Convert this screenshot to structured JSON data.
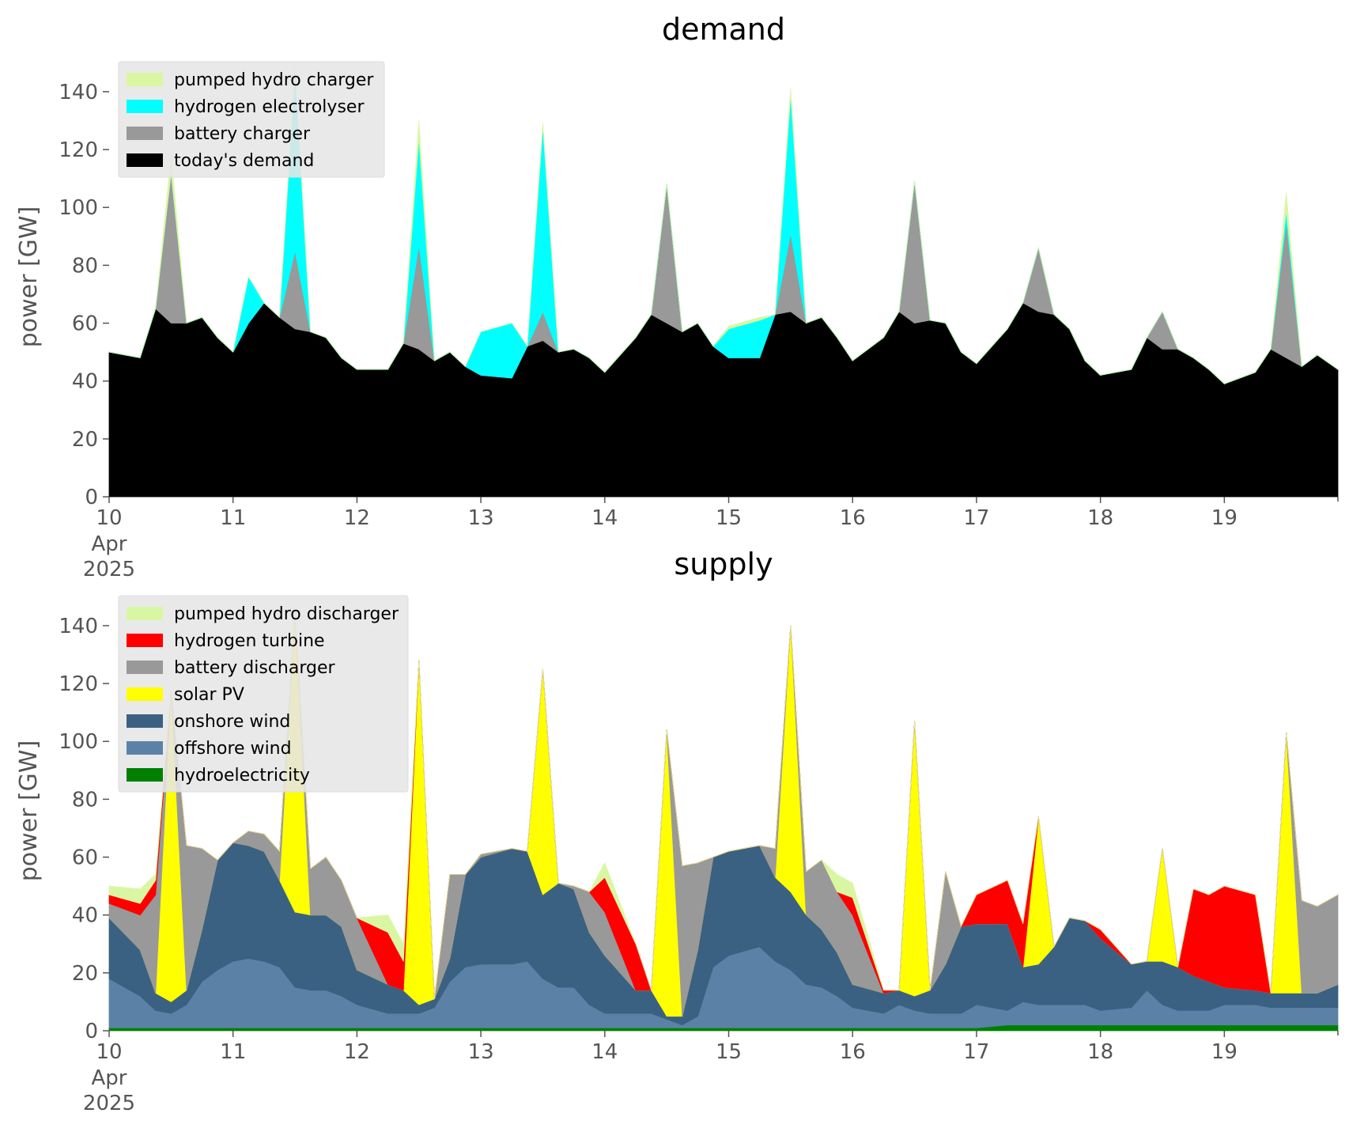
{
  "chart_data": [
    {
      "type": "area",
      "stacked": true,
      "title": "demand",
      "ylabel": "power [GW]",
      "xlabel": "",
      "ylim": [
        0,
        152
      ],
      "yticks": [
        0,
        20,
        40,
        60,
        80,
        100,
        120,
        140
      ],
      "xlim": [
        "2025-04-10 00:00",
        "2025-04-19 22:00"
      ],
      "xtick_labels": [
        "10",
        "11",
        "12",
        "13",
        "14",
        "15",
        "16",
        "17",
        "18",
        "19"
      ],
      "xtick_sublabels": [
        "Apr",
        "2025"
      ],
      "legend_position": "top-left",
      "grid": false,
      "x": [
        "2025-04-10 00:00",
        "2025-04-10 06:00",
        "2025-04-10 09:00",
        "2025-04-10 12:00",
        "2025-04-10 15:00",
        "2025-04-10 18:00",
        "2025-04-10 21:00",
        "2025-04-11 00:00",
        "2025-04-11 03:00",
        "2025-04-11 06:00",
        "2025-04-11 09:00",
        "2025-04-11 12:00",
        "2025-04-11 15:00",
        "2025-04-11 18:00",
        "2025-04-11 21:00",
        "2025-04-12 00:00",
        "2025-04-12 06:00",
        "2025-04-12 09:00",
        "2025-04-12 12:00",
        "2025-04-12 15:00",
        "2025-04-12 18:00",
        "2025-04-12 21:00",
        "2025-04-13 00:00",
        "2025-04-13 06:00",
        "2025-04-13 09:00",
        "2025-04-13 12:00",
        "2025-04-13 15:00",
        "2025-04-13 18:00",
        "2025-04-13 21:00",
        "2025-04-14 00:00",
        "2025-04-14 06:00",
        "2025-04-14 09:00",
        "2025-04-14 12:00",
        "2025-04-14 15:00",
        "2025-04-14 18:00",
        "2025-04-14 21:00",
        "2025-04-15 00:00",
        "2025-04-15 06:00",
        "2025-04-15 09:00",
        "2025-04-15 12:00",
        "2025-04-15 15:00",
        "2025-04-15 18:00",
        "2025-04-15 21:00",
        "2025-04-16 00:00",
        "2025-04-16 06:00",
        "2025-04-16 09:00",
        "2025-04-16 12:00",
        "2025-04-16 15:00",
        "2025-04-16 18:00",
        "2025-04-16 21:00",
        "2025-04-17 00:00",
        "2025-04-17 06:00",
        "2025-04-17 09:00",
        "2025-04-17 12:00",
        "2025-04-17 15:00",
        "2025-04-17 18:00",
        "2025-04-17 21:00",
        "2025-04-18 00:00",
        "2025-04-18 06:00",
        "2025-04-18 09:00",
        "2025-04-18 12:00",
        "2025-04-18 15:00",
        "2025-04-18 18:00",
        "2025-04-18 21:00",
        "2025-04-19 00:00",
        "2025-04-19 06:00",
        "2025-04-19 09:00",
        "2025-04-19 12:00",
        "2025-04-19 15:00",
        "2025-04-19 18:00",
        "2025-04-19 22:00"
      ],
      "series": [
        {
          "name": "today's demand",
          "color": "#000000",
          "values": [
            50,
            48,
            65,
            60,
            60,
            62,
            55,
            50,
            60,
            67,
            62,
            58,
            57,
            55,
            48,
            44,
            44,
            53,
            51,
            47,
            50,
            45,
            42,
            41,
            52,
            54,
            50,
            51,
            48,
            43,
            55,
            63,
            60,
            57,
            60,
            52,
            48,
            48,
            63,
            64,
            60,
            62,
            55,
            47,
            55,
            64,
            60,
            61,
            60,
            50,
            46,
            58,
            67,
            64,
            63,
            58,
            47,
            42,
            44,
            55,
            51,
            51,
            48,
            44,
            39,
            43,
            51,
            48,
            45,
            49,
            44
          ]
        },
        {
          "name": "battery charger",
          "color": "#999999",
          "values": [
            0,
            0,
            0,
            52,
            0,
            0,
            0,
            0,
            0,
            0,
            0,
            27,
            0,
            0,
            0,
            0,
            0,
            0,
            36,
            0,
            0,
            0,
            0,
            0,
            0,
            10,
            0,
            0,
            0,
            0,
            0,
            0,
            48,
            0,
            0,
            0,
            0,
            0,
            0,
            27,
            0,
            0,
            0,
            0,
            0,
            0,
            49,
            0,
            0,
            0,
            0,
            0,
            0,
            22,
            0,
            0,
            0,
            0,
            0,
            0,
            13,
            0,
            0,
            0,
            0,
            0,
            0,
            47,
            0,
            0,
            0
          ]
        },
        {
          "name": "hydrogen electrolyser",
          "color": "#00ffff",
          "values": [
            0,
            0,
            0,
            0,
            0,
            0,
            0,
            0,
            16,
            0,
            0,
            62,
            0,
            0,
            0,
            0,
            0,
            0,
            37,
            0,
            0,
            0,
            15,
            19,
            0,
            64,
            0,
            0,
            0,
            0,
            0,
            0,
            0,
            0,
            0,
            0,
            10,
            13,
            0,
            48,
            0,
            0,
            0,
            0,
            0,
            0,
            0,
            0,
            0,
            0,
            0,
            0,
            0,
            0,
            0,
            0,
            0,
            0,
            0,
            0,
            0,
            0,
            0,
            0,
            0,
            0,
            0,
            4,
            0,
            0,
            0
          ]
        },
        {
          "name": "pumped hydro charger",
          "color": "#d9f7a3",
          "values": [
            0,
            0,
            0,
            6,
            0,
            0,
            0,
            0,
            0,
            0,
            0,
            1,
            0,
            0,
            0,
            0,
            0,
            0,
            6,
            0,
            0,
            0,
            0,
            0,
            0,
            1,
            0,
            0,
            0,
            0,
            0,
            0,
            0,
            0,
            0,
            0,
            1,
            1,
            0,
            2,
            0,
            0,
            0,
            0,
            0,
            0,
            0,
            0,
            0,
            0,
            0,
            0,
            0,
            0,
            0,
            0,
            0,
            0,
            0,
            0,
            0,
            0,
            0,
            0,
            0,
            0,
            0,
            6,
            0,
            0,
            0
          ]
        }
      ]
    },
    {
      "type": "area",
      "stacked": true,
      "title": "supply",
      "ylabel": "power [GW]",
      "xlabel": "",
      "ylim": [
        0,
        152
      ],
      "yticks": [
        0,
        20,
        40,
        60,
        80,
        100,
        120,
        140
      ],
      "xlim": [
        "2025-04-10 00:00",
        "2025-04-19 22:00"
      ],
      "xtick_labels": [
        "10",
        "11",
        "12",
        "13",
        "14",
        "15",
        "16",
        "17",
        "18",
        "19"
      ],
      "xtick_sublabels": [
        "Apr",
        "2025"
      ],
      "legend_position": "top-left",
      "grid": false,
      "x": [
        "2025-04-10 00:00",
        "2025-04-10 06:00",
        "2025-04-10 09:00",
        "2025-04-10 12:00",
        "2025-04-10 15:00",
        "2025-04-10 18:00",
        "2025-04-10 21:00",
        "2025-04-11 00:00",
        "2025-04-11 03:00",
        "2025-04-11 06:00",
        "2025-04-11 09:00",
        "2025-04-11 12:00",
        "2025-04-11 15:00",
        "2025-04-11 18:00",
        "2025-04-11 21:00",
        "2025-04-12 00:00",
        "2025-04-12 06:00",
        "2025-04-12 09:00",
        "2025-04-12 12:00",
        "2025-04-12 15:00",
        "2025-04-12 18:00",
        "2025-04-12 21:00",
        "2025-04-13 00:00",
        "2025-04-13 06:00",
        "2025-04-13 09:00",
        "2025-04-13 12:00",
        "2025-04-13 15:00",
        "2025-04-13 18:00",
        "2025-04-13 21:00",
        "2025-04-14 00:00",
        "2025-04-14 06:00",
        "2025-04-14 09:00",
        "2025-04-14 12:00",
        "2025-04-14 15:00",
        "2025-04-14 18:00",
        "2025-04-14 21:00",
        "2025-04-15 00:00",
        "2025-04-15 06:00",
        "2025-04-15 09:00",
        "2025-04-15 12:00",
        "2025-04-15 15:00",
        "2025-04-15 18:00",
        "2025-04-15 21:00",
        "2025-04-16 00:00",
        "2025-04-16 06:00",
        "2025-04-16 09:00",
        "2025-04-16 12:00",
        "2025-04-16 15:00",
        "2025-04-16 18:00",
        "2025-04-16 21:00",
        "2025-04-17 00:00",
        "2025-04-17 06:00",
        "2025-04-17 09:00",
        "2025-04-17 12:00",
        "2025-04-17 15:00",
        "2025-04-17 18:00",
        "2025-04-17 21:00",
        "2025-04-18 00:00",
        "2025-04-18 06:00",
        "2025-04-18 09:00",
        "2025-04-18 12:00",
        "2025-04-18 15:00",
        "2025-04-18 18:00",
        "2025-04-18 21:00",
        "2025-04-19 00:00",
        "2025-04-19 06:00",
        "2025-04-19 09:00",
        "2025-04-19 12:00",
        "2025-04-19 15:00",
        "2025-04-19 18:00",
        "2025-04-19 22:00"
      ],
      "series": [
        {
          "name": "hydroelectricity",
          "color": "#008000",
          "values": [
            1,
            1,
            1,
            1,
            1,
            1,
            1,
            1,
            1,
            1,
            1,
            1,
            1,
            1,
            1,
            1,
            1,
            1,
            1,
            1,
            1,
            1,
            1,
            1,
            1,
            1,
            1,
            1,
            1,
            1,
            1,
            1,
            1,
            1,
            1,
            1,
            1,
            1,
            1,
            1,
            1,
            1,
            1,
            1,
            1,
            1,
            1,
            1,
            1,
            1,
            1,
            2,
            2,
            2,
            2,
            2,
            2,
            2,
            2,
            2,
            2,
            2,
            2,
            2,
            2,
            2,
            2,
            2,
            2,
            2,
            2
          ]
        },
        {
          "name": "offshore wind",
          "color": "#5b82a6",
          "values": [
            17,
            11,
            6,
            5,
            8,
            16,
            20,
            23,
            24,
            23,
            21,
            14,
            13,
            13,
            11,
            8,
            5,
            5,
            5,
            7,
            16,
            21,
            22,
            22,
            23,
            17,
            14,
            14,
            8,
            5,
            5,
            5,
            3,
            1,
            4,
            21,
            25,
            28,
            23,
            20,
            15,
            14,
            11,
            7,
            5,
            8,
            6,
            5,
            5,
            5,
            8,
            5,
            8,
            7,
            7,
            7,
            7,
            5,
            6,
            12,
            7,
            5,
            5,
            5,
            7,
            7,
            6,
            6,
            6,
            6,
            6
          ]
        },
        {
          "name": "onshore wind",
          "color": "#3b6182",
          "values": [
            21,
            16,
            6,
            4,
            5,
            18,
            38,
            41,
            39,
            38,
            30,
            26,
            26,
            26,
            24,
            12,
            10,
            8,
            3,
            3,
            8,
            32,
            37,
            40,
            38,
            29,
            36,
            34,
            25,
            20,
            8,
            8,
            1,
            3,
            23,
            38,
            36,
            35,
            29,
            27,
            24,
            20,
            15,
            8,
            7,
            5,
            5,
            8,
            17,
            30,
            28,
            30,
            12,
            14,
            20,
            30,
            29,
            25,
            15,
            10,
            15,
            15,
            12,
            10,
            6,
            5,
            5,
            5,
            5,
            5,
            8
          ]
        },
        {
          "name": "solar PV",
          "color": "#ffff00",
          "values": [
            0,
            0,
            0,
            108,
            0,
            0,
            0,
            0,
            0,
            0,
            0,
            104,
            0,
            0,
            0,
            0,
            0,
            0,
            119,
            0,
            0,
            0,
            0,
            0,
            0,
            78,
            0,
            0,
            0,
            0,
            0,
            0,
            99,
            0,
            0,
            0,
            0,
            0,
            0,
            92,
            0,
            0,
            0,
            0,
            0,
            0,
            95,
            0,
            0,
            0,
            0,
            0,
            0,
            51,
            0,
            0,
            0,
            0,
            0,
            0,
            39,
            0,
            0,
            0,
            0,
            0,
            0,
            90,
            0,
            0,
            0
          ]
        },
        {
          "name": "battery discharger",
          "color": "#999999",
          "values": [
            5,
            12,
            34,
            0,
            50,
            28,
            0,
            0,
            5,
            6,
            10,
            0,
            16,
            20,
            16,
            18,
            0,
            0,
            0,
            0,
            29,
            0,
            1,
            0,
            0,
            0,
            0,
            1,
            14,
            15,
            0,
            0,
            0,
            52,
            30,
            0,
            0,
            0,
            10,
            0,
            15,
            24,
            21,
            24,
            0,
            0,
            0,
            0,
            32,
            0,
            0,
            0,
            0,
            0,
            0,
            0,
            0,
            0,
            0,
            0,
            0,
            0,
            0,
            0,
            0,
            0,
            0,
            0,
            32,
            30,
            31
          ]
        },
        {
          "name": "hydrogen turbine",
          "color": "#ff0000",
          "values": [
            3,
            4,
            5,
            0,
            0,
            0,
            0,
            0,
            0,
            0,
            0,
            0,
            0,
            0,
            0,
            0,
            18,
            10,
            0,
            0,
            0,
            0,
            0,
            0,
            0,
            0,
            0,
            0,
            0,
            12,
            16,
            0,
            0,
            0,
            0,
            0,
            0,
            0,
            0,
            0,
            0,
            0,
            0,
            6,
            1,
            0,
            0,
            0,
            0,
            0,
            10,
            15,
            15,
            0,
            0,
            0,
            0,
            3,
            0,
            0,
            0,
            0,
            30,
            30,
            35,
            33,
            0,
            0,
            0,
            0,
            0
          ]
        },
        {
          "name": "pumped hydro discharger",
          "color": "#d9f7a3",
          "values": [
            3,
            5,
            2,
            0,
            0,
            0,
            0,
            0,
            0,
            0,
            0,
            0,
            0,
            0,
            0,
            0,
            6,
            6,
            0,
            0,
            0,
            0,
            0,
            0,
            0,
            0,
            0,
            0,
            0,
            5,
            0,
            0,
            0,
            0,
            0,
            0,
            0,
            0,
            0,
            0,
            0,
            0,
            6,
            5,
            0,
            0,
            0,
            0,
            0,
            0,
            0,
            0,
            0,
            0,
            0,
            0,
            0,
            0,
            0,
            0,
            0,
            0,
            0,
            0,
            0,
            0,
            0,
            0,
            0,
            0,
            0
          ]
        }
      ]
    }
  ]
}
